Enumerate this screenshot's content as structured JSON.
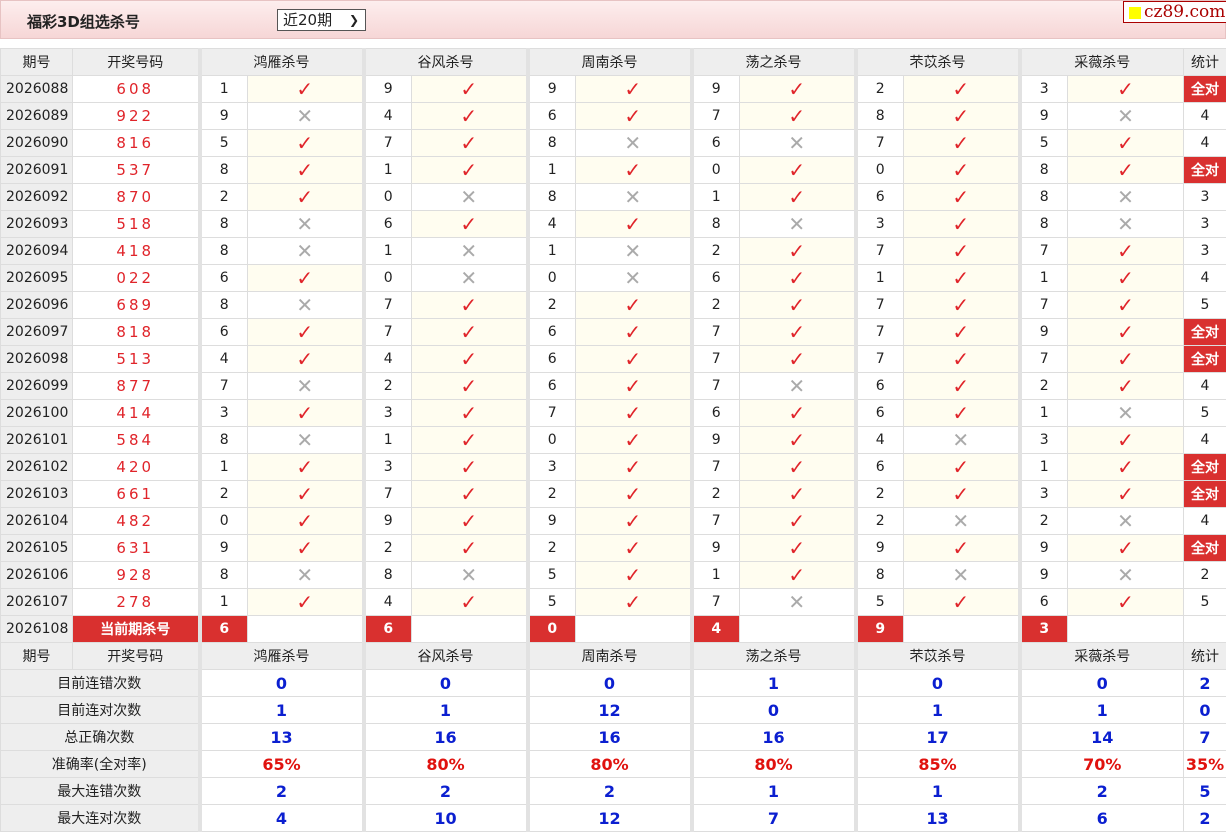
{
  "header": {
    "title": "福彩3D组选杀号",
    "period_select": "近20期",
    "logo_text": "cz89.com"
  },
  "columns": {
    "period": "期号",
    "draw": "开奖号码",
    "stat": "统计",
    "predictors": [
      "鸿雁杀号",
      "谷风杀号",
      "周南杀号",
      "荡之杀号",
      "芣苡杀号",
      "采薇杀号"
    ]
  },
  "all_correct_label": "全对",
  "rows": [
    {
      "period": "2026088",
      "draw": "608",
      "picks": [
        [
          1,
          1
        ],
        [
          9,
          1
        ],
        [
          9,
          1
        ],
        [
          9,
          1
        ],
        [
          2,
          1
        ],
        [
          3,
          1
        ]
      ],
      "stat": "全对"
    },
    {
      "period": "2026089",
      "draw": "922",
      "picks": [
        [
          9,
          0
        ],
        [
          4,
          1
        ],
        [
          6,
          1
        ],
        [
          7,
          1
        ],
        [
          8,
          1
        ],
        [
          9,
          0
        ]
      ],
      "stat": "4"
    },
    {
      "period": "2026090",
      "draw": "816",
      "picks": [
        [
          5,
          1
        ],
        [
          7,
          1
        ],
        [
          8,
          0
        ],
        [
          6,
          0
        ],
        [
          7,
          1
        ],
        [
          5,
          1
        ]
      ],
      "stat": "4"
    },
    {
      "period": "2026091",
      "draw": "537",
      "picks": [
        [
          8,
          1
        ],
        [
          1,
          1
        ],
        [
          1,
          1
        ],
        [
          0,
          1
        ],
        [
          0,
          1
        ],
        [
          8,
          1
        ]
      ],
      "stat": "全对"
    },
    {
      "period": "2026092",
      "draw": "870",
      "picks": [
        [
          2,
          1
        ],
        [
          0,
          0
        ],
        [
          8,
          0
        ],
        [
          1,
          1
        ],
        [
          6,
          1
        ],
        [
          8,
          0
        ]
      ],
      "stat": "3"
    },
    {
      "period": "2026093",
      "draw": "518",
      "picks": [
        [
          8,
          0
        ],
        [
          6,
          1
        ],
        [
          4,
          1
        ],
        [
          8,
          0
        ],
        [
          3,
          1
        ],
        [
          8,
          0
        ]
      ],
      "stat": "3"
    },
    {
      "period": "2026094",
      "draw": "418",
      "picks": [
        [
          8,
          0
        ],
        [
          1,
          0
        ],
        [
          1,
          0
        ],
        [
          2,
          1
        ],
        [
          7,
          1
        ],
        [
          7,
          1
        ]
      ],
      "stat": "3"
    },
    {
      "period": "2026095",
      "draw": "022",
      "picks": [
        [
          6,
          1
        ],
        [
          0,
          0
        ],
        [
          0,
          0
        ],
        [
          6,
          1
        ],
        [
          1,
          1
        ],
        [
          1,
          1
        ]
      ],
      "stat": "4"
    },
    {
      "period": "2026096",
      "draw": "689",
      "picks": [
        [
          8,
          0
        ],
        [
          7,
          1
        ],
        [
          2,
          1
        ],
        [
          2,
          1
        ],
        [
          7,
          1
        ],
        [
          7,
          1
        ]
      ],
      "stat": "5"
    },
    {
      "period": "2026097",
      "draw": "818",
      "picks": [
        [
          6,
          1
        ],
        [
          7,
          1
        ],
        [
          6,
          1
        ],
        [
          7,
          1
        ],
        [
          7,
          1
        ],
        [
          9,
          1
        ]
      ],
      "stat": "全对"
    },
    {
      "period": "2026098",
      "draw": "513",
      "picks": [
        [
          4,
          1
        ],
        [
          4,
          1
        ],
        [
          6,
          1
        ],
        [
          7,
          1
        ],
        [
          7,
          1
        ],
        [
          7,
          1
        ]
      ],
      "stat": "全对"
    },
    {
      "period": "2026099",
      "draw": "877",
      "picks": [
        [
          7,
          0
        ],
        [
          2,
          1
        ],
        [
          6,
          1
        ],
        [
          7,
          0
        ],
        [
          6,
          1
        ],
        [
          2,
          1
        ]
      ],
      "stat": "4"
    },
    {
      "period": "2026100",
      "draw": "414",
      "picks": [
        [
          3,
          1
        ],
        [
          3,
          1
        ],
        [
          7,
          1
        ],
        [
          6,
          1
        ],
        [
          6,
          1
        ],
        [
          1,
          0
        ]
      ],
      "stat": "5"
    },
    {
      "period": "2026101",
      "draw": "584",
      "picks": [
        [
          8,
          0
        ],
        [
          1,
          1
        ],
        [
          0,
          1
        ],
        [
          9,
          1
        ],
        [
          4,
          0
        ],
        [
          3,
          1
        ]
      ],
      "stat": "4"
    },
    {
      "period": "2026102",
      "draw": "420",
      "picks": [
        [
          1,
          1
        ],
        [
          3,
          1
        ],
        [
          3,
          1
        ],
        [
          7,
          1
        ],
        [
          6,
          1
        ],
        [
          1,
          1
        ]
      ],
      "stat": "全对"
    },
    {
      "period": "2026103",
      "draw": "661",
      "picks": [
        [
          2,
          1
        ],
        [
          7,
          1
        ],
        [
          2,
          1
        ],
        [
          2,
          1
        ],
        [
          2,
          1
        ],
        [
          3,
          1
        ]
      ],
      "stat": "全对"
    },
    {
      "period": "2026104",
      "draw": "482",
      "picks": [
        [
          0,
          1
        ],
        [
          9,
          1
        ],
        [
          9,
          1
        ],
        [
          7,
          1
        ],
        [
          2,
          0
        ],
        [
          2,
          0
        ]
      ],
      "stat": "4"
    },
    {
      "period": "2026105",
      "draw": "631",
      "picks": [
        [
          9,
          1
        ],
        [
          2,
          1
        ],
        [
          2,
          1
        ],
        [
          9,
          1
        ],
        [
          9,
          1
        ],
        [
          9,
          1
        ]
      ],
      "stat": "全对"
    },
    {
      "period": "2026106",
      "draw": "928",
      "picks": [
        [
          8,
          0
        ],
        [
          8,
          0
        ],
        [
          5,
          1
        ],
        [
          1,
          1
        ],
        [
          8,
          0
        ],
        [
          9,
          0
        ]
      ],
      "stat": "2"
    },
    {
      "period": "2026107",
      "draw": "278",
      "picks": [
        [
          1,
          1
        ],
        [
          4,
          1
        ],
        [
          5,
          1
        ],
        [
          7,
          0
        ],
        [
          5,
          1
        ],
        [
          6,
          1
        ]
      ],
      "stat": "5"
    }
  ],
  "current": {
    "period": "2026108",
    "label": "当前期杀号",
    "picks": [
      "6",
      "6",
      "0",
      "4",
      "9",
      "3"
    ]
  },
  "stats": [
    {
      "label": "目前连错次数",
      "values": [
        "0",
        "0",
        "0",
        "1",
        "0",
        "0"
      ],
      "stat": "2",
      "kind": "count"
    },
    {
      "label": "目前连对次数",
      "values": [
        "1",
        "1",
        "12",
        "0",
        "1",
        "1"
      ],
      "stat": "0",
      "kind": "count"
    },
    {
      "label": "总正确次数",
      "values": [
        "13",
        "16",
        "16",
        "16",
        "17",
        "14"
      ],
      "stat": "7",
      "kind": "count"
    },
    {
      "label": "准确率(全对率)",
      "values": [
        "65%",
        "80%",
        "80%",
        "80%",
        "85%",
        "70%"
      ],
      "stat": "35%",
      "kind": "pct"
    },
    {
      "label": "最大连错次数",
      "values": [
        "2",
        "2",
        "2",
        "1",
        "1",
        "2"
      ],
      "stat": "5",
      "kind": "count"
    },
    {
      "label": "最大连对次数",
      "values": [
        "4",
        "10",
        "12",
        "7",
        "13",
        "6"
      ],
      "stat": "2",
      "kind": "count"
    }
  ],
  "icons": {
    "hit": "check-icon",
    "miss": "cross-icon"
  },
  "colors": {
    "accent": "#d9302f",
    "draw": "#e0242a",
    "stat_blue": "#0b1fd0",
    "pct_red": "#e0120e"
  }
}
